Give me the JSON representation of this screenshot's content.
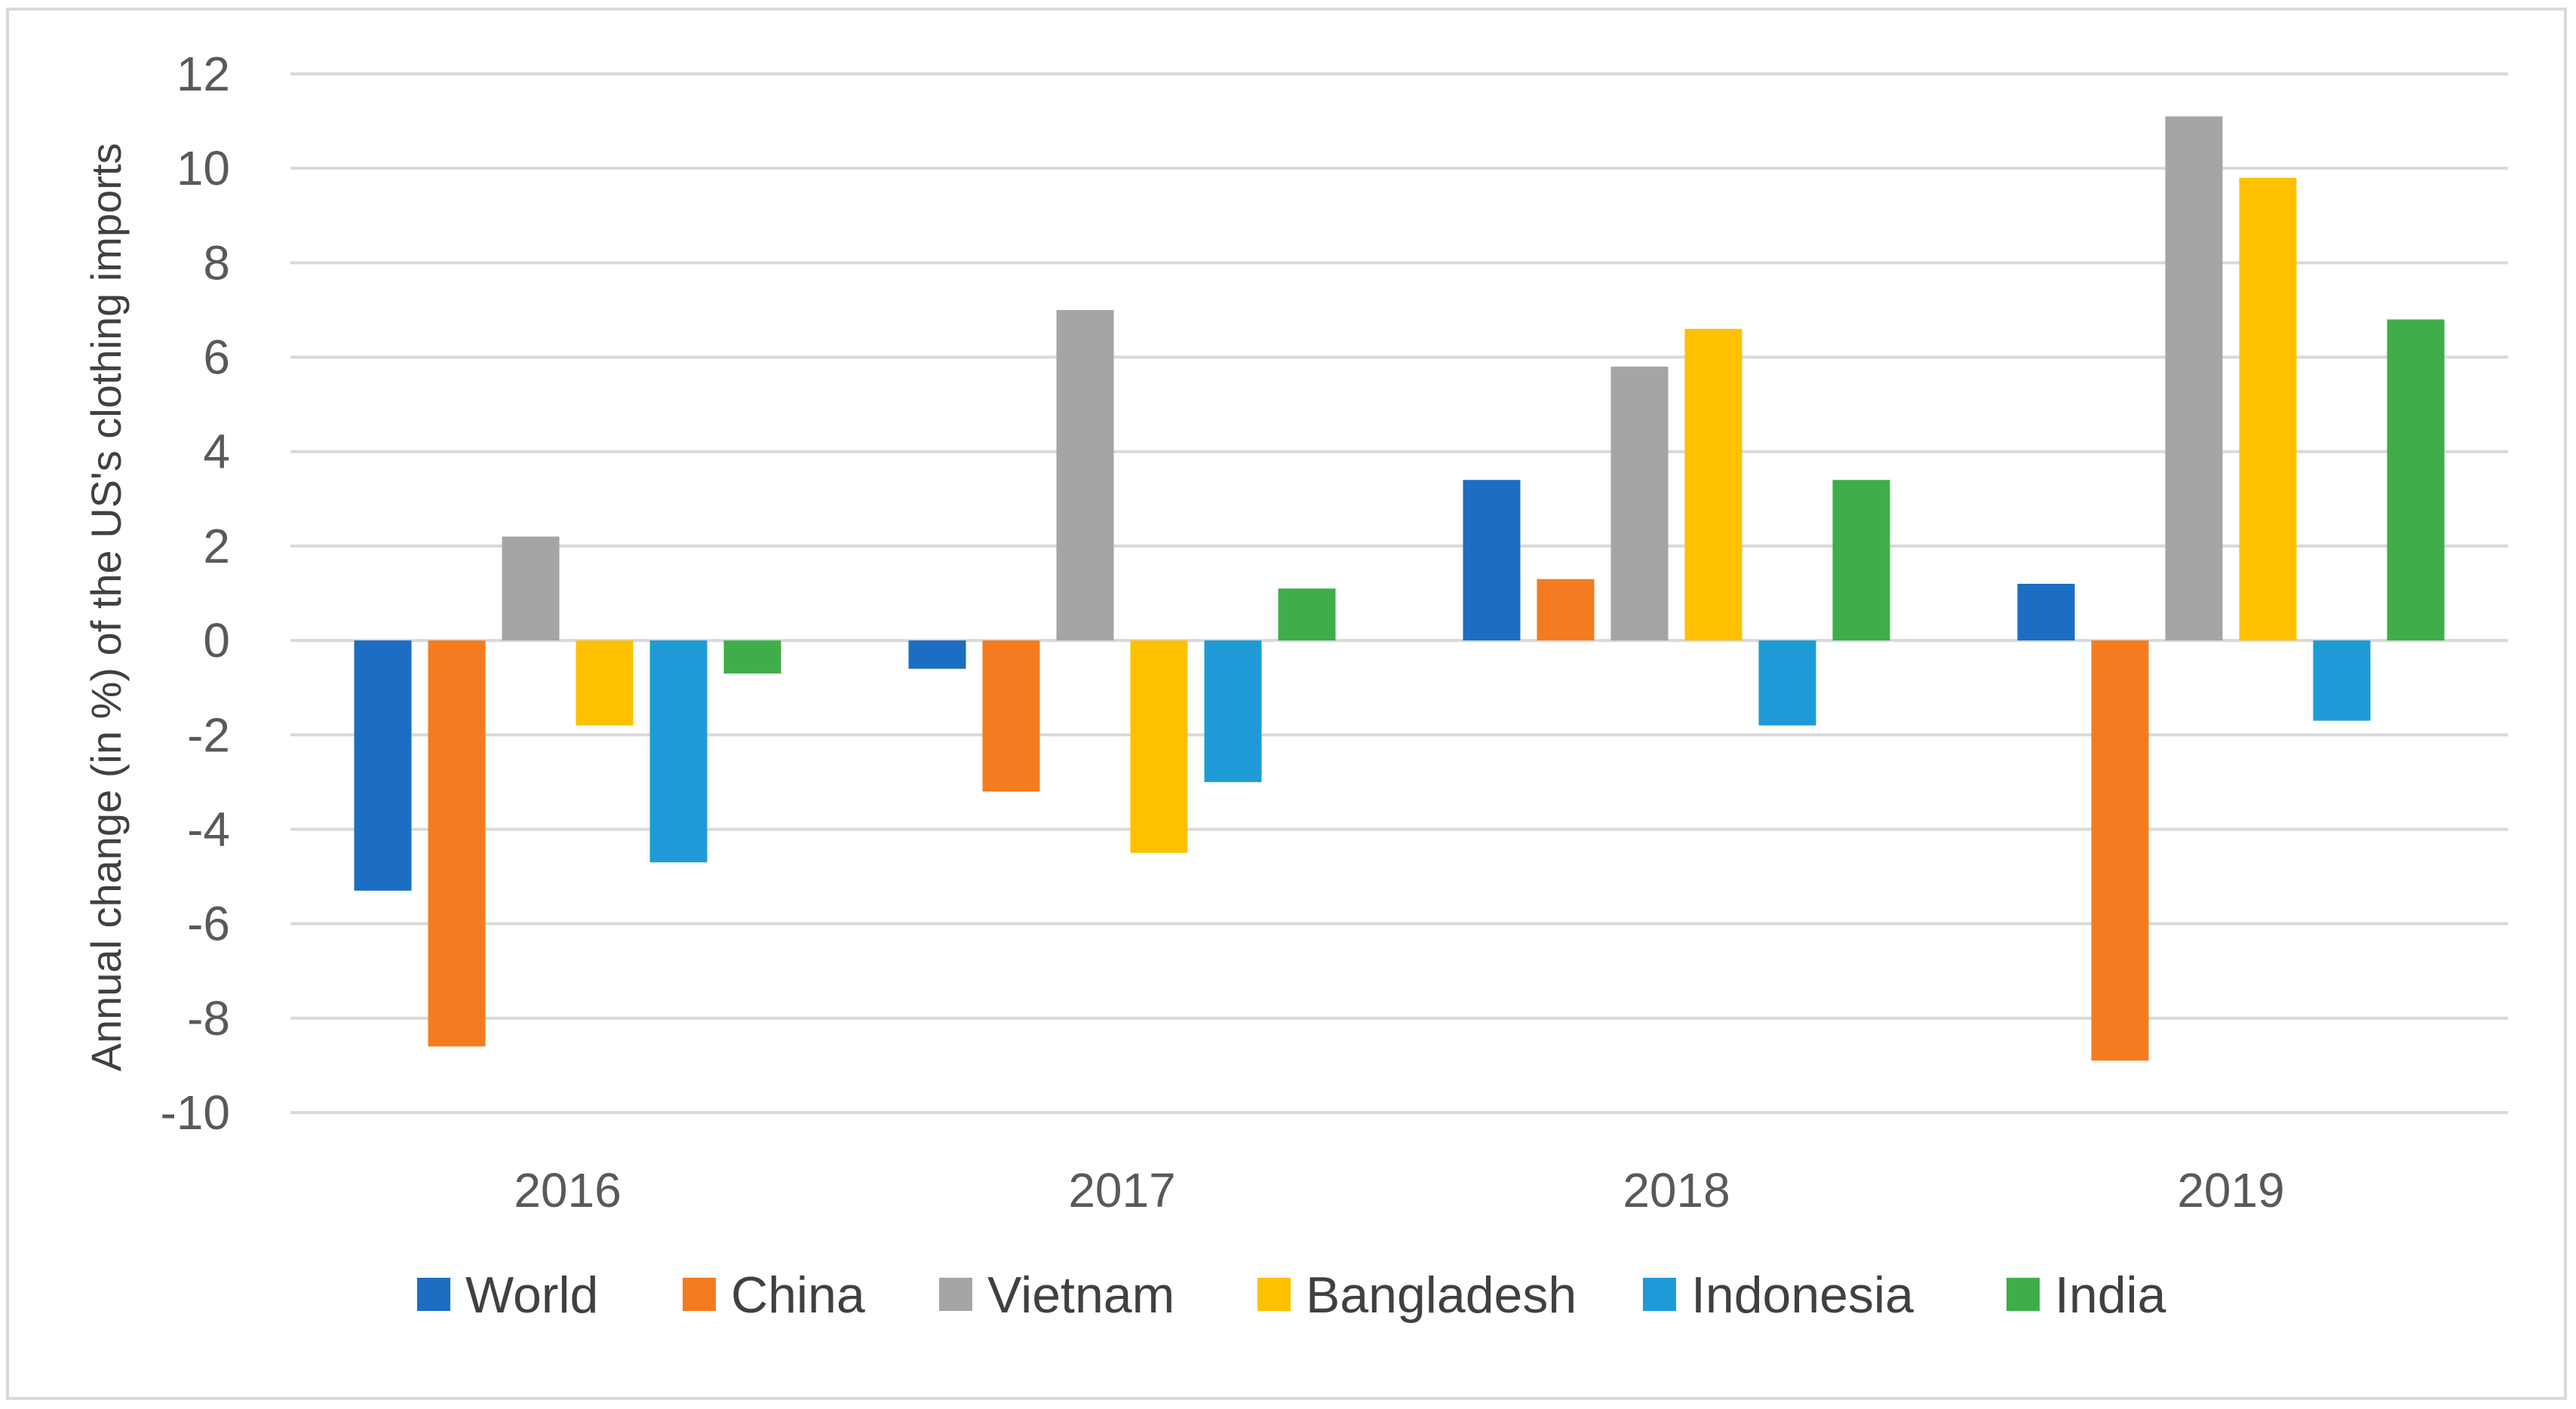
{
  "chart_data": {
    "type": "bar",
    "title": "",
    "xlabel": "",
    "ylabel": "Annual change (in %) of the US's clothing imports",
    "ylim": [
      -10,
      12
    ],
    "yticks": [
      12,
      10,
      8,
      6,
      4,
      2,
      0,
      -2,
      -4,
      -6,
      -8,
      -10
    ],
    "grid": true,
    "legend_position": "bottom",
    "categories": [
      "2016",
      "2017",
      "2018",
      "2019"
    ],
    "series": [
      {
        "name": "World",
        "color": "#1b6ec2",
        "values": [
          -5.3,
          -0.6,
          3.4,
          1.2
        ]
      },
      {
        "name": "China",
        "color": "#f47b20",
        "values": [
          -8.6,
          -3.2,
          1.3,
          -8.9
        ]
      },
      {
        "name": "Vietnam",
        "color": "#a5a5a5",
        "values": [
          2.2,
          7.0,
          5.8,
          11.1
        ]
      },
      {
        "name": "Bangladesh",
        "color": "#ffc000",
        "values": [
          -1.8,
          -4.5,
          6.6,
          9.8
        ]
      },
      {
        "name": "Indonesia",
        "color": "#1e9bd7",
        "values": [
          -4.7,
          -3.0,
          -1.8,
          -1.7
        ]
      },
      {
        "name": "India",
        "color": "#3fae49",
        "values": [
          -0.7,
          1.1,
          3.4,
          6.8
        ]
      }
    ]
  }
}
